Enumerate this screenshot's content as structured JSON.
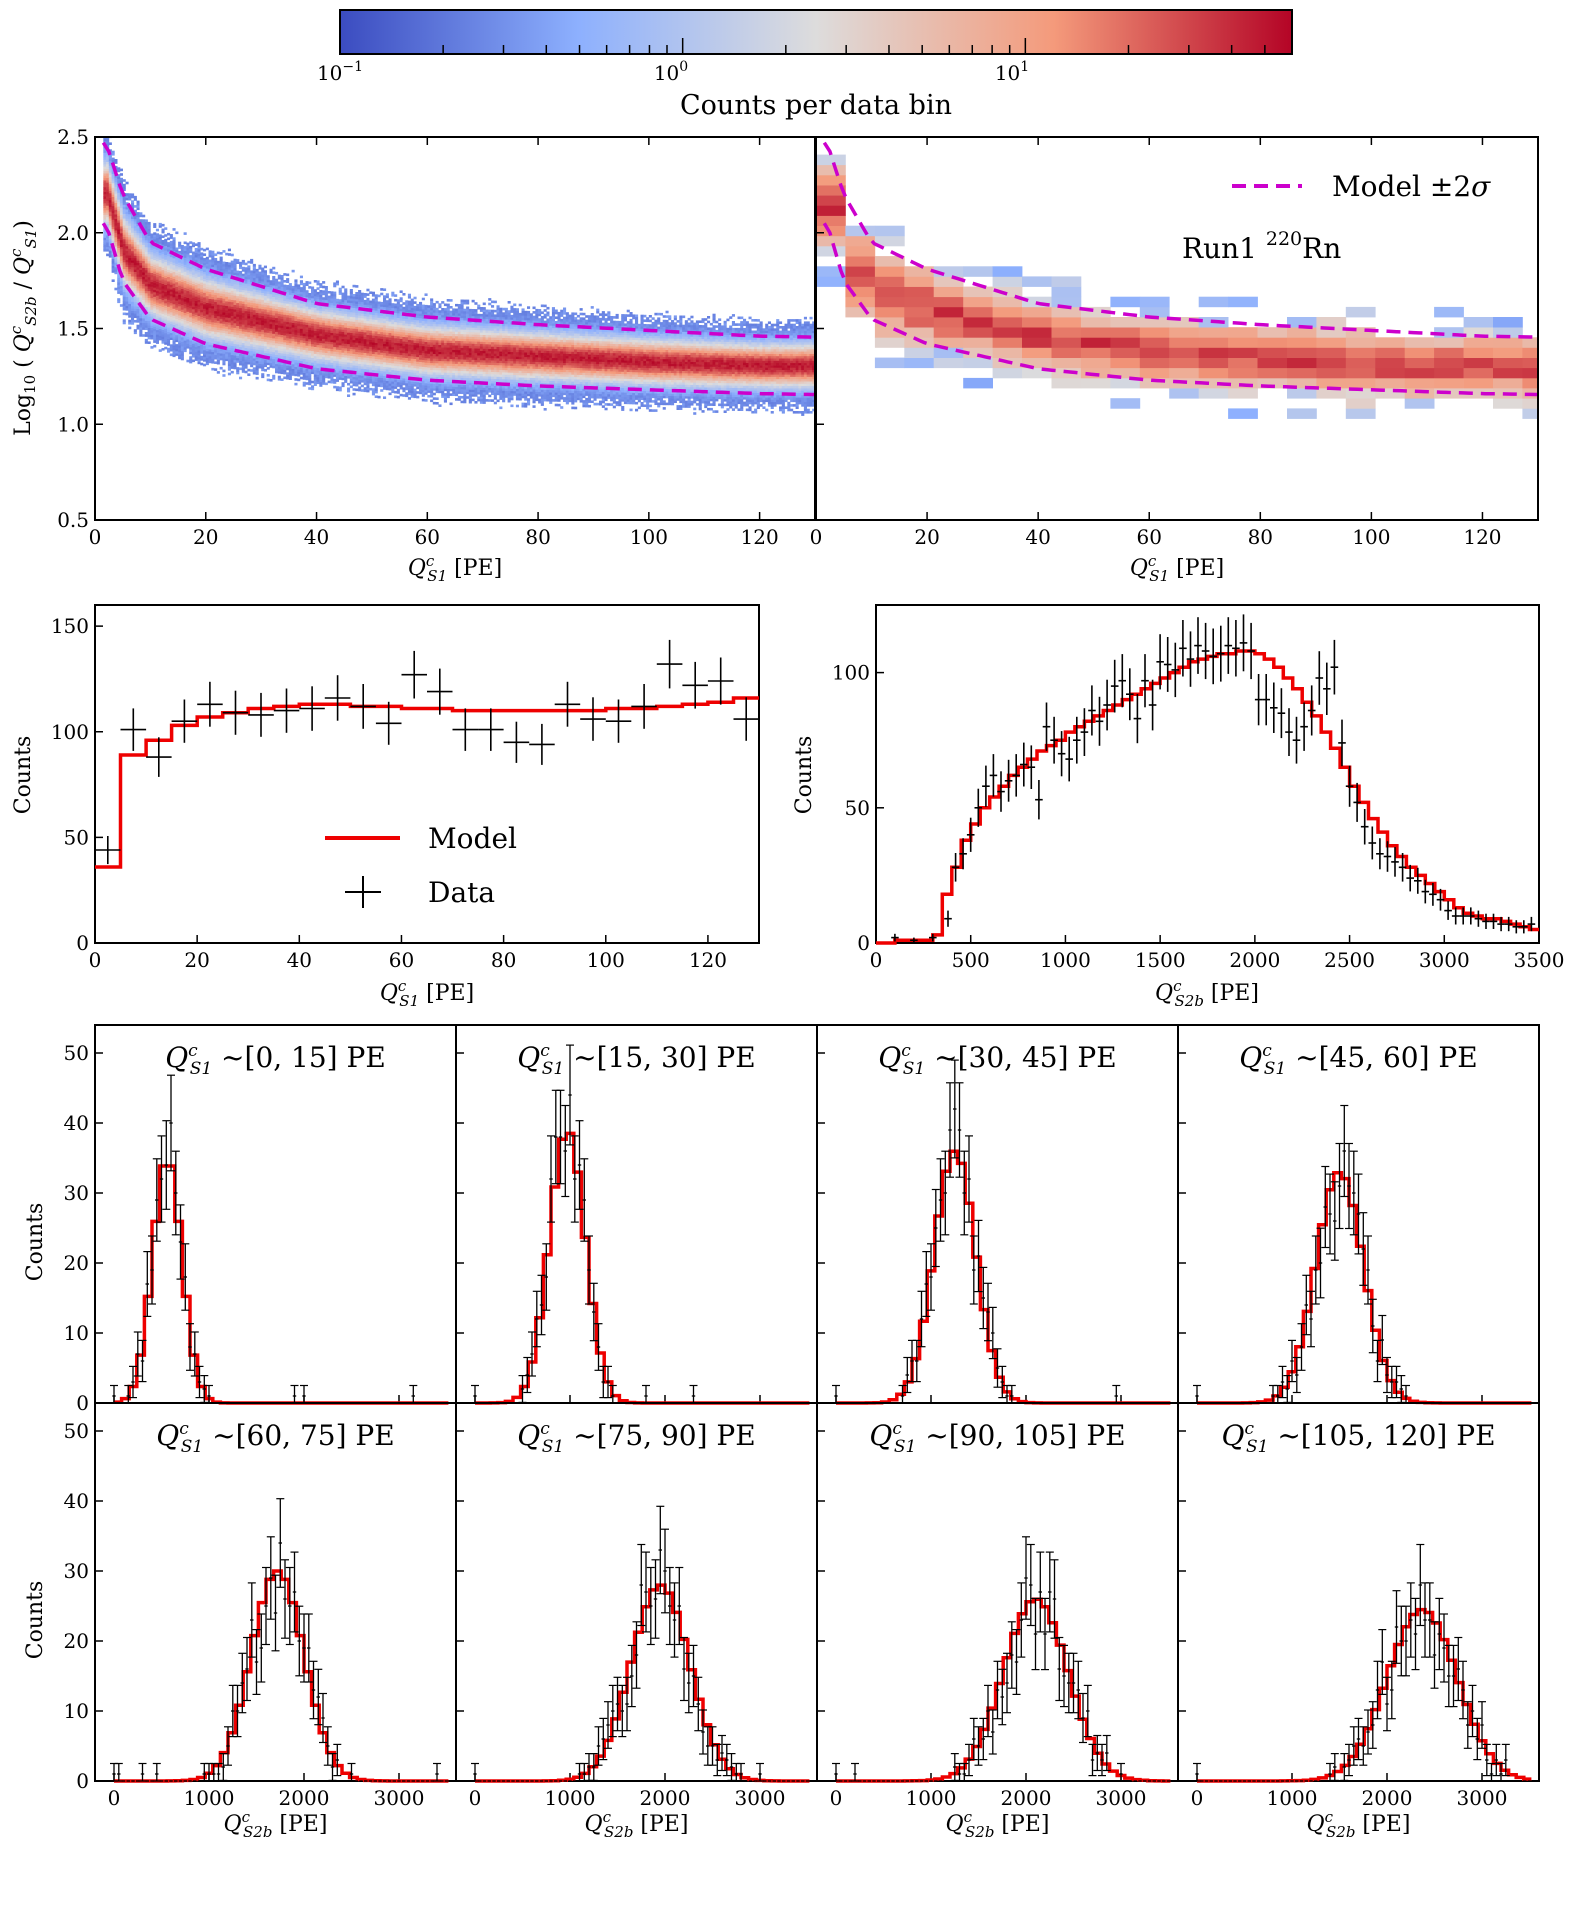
{
  "chart_data": [
    {
      "id": "colorbar",
      "type": "colorbar",
      "label": "Counts per data bin",
      "scale": "log",
      "range": [
        0.1,
        60
      ],
      "tick_labels": [
        "10^-1",
        "10^0",
        "10^1"
      ],
      "colors": [
        "#3b4cc0",
        "#8db0fe",
        "#dddcdc",
        "#f49a7b",
        "#b40426"
      ]
    },
    {
      "id": "hist2d-model",
      "type": "heatmap",
      "xlabel": "Q^c_S1 [PE]",
      "ylabel": "Log10 ( Q^c_S2b / Q^c_S1 )",
      "xlim": [
        0,
        130
      ],
      "ylim": [
        0.5,
        2.5
      ],
      "xticks": [
        "0",
        "20",
        "40",
        "60",
        "80",
        "100",
        "120"
      ],
      "yticks": [
        "0.5",
        "1.0",
        "1.5",
        "2.0",
        "2.5"
      ],
      "band_center": [
        [
          2,
          2.2
        ],
        [
          5,
          1.9
        ],
        [
          10,
          1.72
        ],
        [
          20,
          1.6
        ],
        [
          40,
          1.46
        ],
        [
          60,
          1.38
        ],
        [
          80,
          1.35
        ],
        [
          100,
          1.32
        ],
        [
          120,
          1.3
        ],
        [
          130,
          1.3
        ]
      ],
      "model_minus2sigma": [
        [
          2,
          2.05
        ],
        [
          5,
          1.75
        ],
        [
          10,
          1.55
        ],
        [
          20,
          1.42
        ],
        [
          40,
          1.29
        ],
        [
          60,
          1.23
        ],
        [
          80,
          1.2
        ],
        [
          100,
          1.18
        ],
        [
          120,
          1.16
        ],
        [
          130,
          1.155
        ]
      ],
      "model_plus2sigma": [
        [
          2,
          2.47
        ],
        [
          5,
          2.2
        ],
        [
          10,
          1.95
        ],
        [
          20,
          1.81
        ],
        [
          40,
          1.63
        ],
        [
          60,
          1.56
        ],
        [
          80,
          1.52
        ],
        [
          100,
          1.49
        ],
        [
          120,
          1.46
        ],
        [
          130,
          1.455
        ]
      ]
    },
    {
      "id": "hist2d-data",
      "type": "heatmap",
      "title": "Run1 220Rn",
      "legend": "Model ±2σ",
      "xlabel": "Q^c_S1 [PE]",
      "xlim": [
        0,
        130
      ],
      "ylim": [
        0.5,
        2.5
      ],
      "xticks": [
        "0",
        "20",
        "40",
        "60",
        "80",
        "100",
        "120"
      ]
    },
    {
      "id": "s1-spectrum",
      "type": "histogram",
      "xlabel": "Q^c_S1 [PE]",
      "ylabel": "Counts",
      "xlim": [
        0,
        130
      ],
      "ylim": [
        0,
        160
      ],
      "xticks": [
        "0",
        "20",
        "40",
        "60",
        "80",
        "100",
        "120"
      ],
      "yticks": [
        "0",
        "50",
        "100",
        "150"
      ],
      "legend": [
        "Model",
        "Data"
      ],
      "data_x": [
        2.5,
        7.5,
        12.5,
        17.5,
        22.5,
        27.5,
        32.5,
        37.5,
        42.5,
        47.5,
        52.5,
        57.5,
        62.5,
        67.5,
        72.5,
        77.5,
        82.5,
        87.5,
        92.5,
        97.5,
        102.5,
        107.5,
        112.5,
        117.5,
        122.5,
        127.5
      ],
      "data_y": [
        44,
        101,
        88,
        105,
        113,
        109,
        108,
        110,
        111,
        116,
        112,
        104,
        127,
        119,
        101,
        101,
        95,
        94,
        113,
        106,
        105,
        112,
        132,
        122,
        124,
        106
      ],
      "model_edges": [
        0,
        5,
        10,
        15,
        20,
        25,
        30,
        35,
        40,
        45,
        50,
        55,
        60,
        65,
        70,
        75,
        80,
        85,
        90,
        95,
        100,
        105,
        110,
        115,
        120,
        125,
        130
      ],
      "model_values": [
        36,
        89,
        96,
        103,
        107,
        109,
        111,
        112,
        113,
        113,
        112,
        112,
        111,
        111,
        110,
        110,
        110,
        110,
        110,
        110,
        111,
        111,
        112,
        113,
        114,
        116
      ]
    },
    {
      "id": "s2-spectrum",
      "type": "histogram",
      "xlabel": "Q^c_S2b [PE]",
      "ylabel": "Counts",
      "xlim": [
        0,
        3500
      ],
      "ylim": [
        0,
        125
      ],
      "xticks": [
        "0",
        "500",
        "1000",
        "1500",
        "2000",
        "2500",
        "3000",
        "3500"
      ],
      "yticks": [
        "0",
        "50",
        "100"
      ],
      "data_x": [
        100,
        200,
        300,
        380,
        420,
        460,
        500,
        540,
        580,
        620,
        660,
        700,
        740,
        780,
        820,
        860,
        900,
        940,
        980,
        1020,
        1060,
        1100,
        1140,
        1180,
        1220,
        1260,
        1300,
        1340,
        1380,
        1420,
        1460,
        1500,
        1540,
        1580,
        1620,
        1660,
        1700,
        1740,
        1780,
        1820,
        1860,
        1900,
        1940,
        1980,
        2020,
        2060,
        2100,
        2140,
        2180,
        2220,
        2260,
        2300,
        2340,
        2380,
        2420,
        2460,
        2500,
        2540,
        2580,
        2620,
        2660,
        2700,
        2740,
        2780,
        2820,
        2860,
        2900,
        2940,
        2980,
        3020,
        3060,
        3100,
        3140,
        3180,
        3220,
        3260,
        3300,
        3340,
        3380,
        3420,
        3460
      ],
      "data_y": [
        2,
        1,
        2,
        9,
        28,
        33,
        40,
        50,
        58,
        62,
        56,
        60,
        62,
        66,
        65,
        53,
        80,
        75,
        70,
        68,
        75,
        78,
        86,
        82,
        88,
        95,
        97,
        92,
        83,
        97,
        88,
        104,
        103,
        101,
        109,
        105,
        110,
        108,
        106,
        107,
        110,
        109,
        111,
        108,
        90,
        90,
        87,
        85,
        78,
        75,
        80,
        86,
        98,
        94,
        102,
        74,
        58,
        52,
        43,
        37,
        33,
        32,
        30,
        28,
        24,
        23,
        19,
        18,
        16,
        12,
        10,
        10,
        10,
        9,
        8,
        8,
        7,
        7,
        6,
        6,
        7
      ],
      "model_edges": [
        0,
        100,
        200,
        300,
        350,
        400,
        450,
        500,
        550,
        600,
        650,
        700,
        750,
        800,
        850,
        900,
        950,
        1000,
        1050,
        1100,
        1150,
        1200,
        1250,
        1300,
        1350,
        1400,
        1450,
        1500,
        1550,
        1600,
        1650,
        1700,
        1750,
        1800,
        1850,
        1900,
        1950,
        2000,
        2050,
        2100,
        2150,
        2200,
        2250,
        2300,
        2350,
        2400,
        2450,
        2500,
        2550,
        2600,
        2650,
        2700,
        2750,
        2800,
        2850,
        2900,
        2950,
        3000,
        3050,
        3100,
        3150,
        3200,
        3250,
        3300,
        3350,
        3400,
        3450,
        3500
      ],
      "model_values": [
        0,
        1,
        1,
        3,
        18,
        28,
        38,
        44,
        50,
        54,
        58,
        62,
        65,
        68,
        71,
        73,
        75,
        78,
        80,
        82,
        84,
        86,
        88,
        90,
        92,
        94,
        96,
        98,
        100,
        102,
        104,
        105,
        106,
        107,
        107,
        108,
        108,
        107,
        105,
        102,
        98,
        94,
        89,
        84,
        78,
        72,
        65,
        58,
        52,
        46,
        41,
        36,
        32,
        28,
        25,
        22,
        19,
        16,
        13,
        11,
        10,
        9,
        9,
        8,
        7,
        6,
        5
      ]
    },
    {
      "id": "slices",
      "type": "histogram-grid",
      "ylabel": "Counts",
      "xlabel": "Q^c_S2b [PE]",
      "xlim": [
        -200,
        3600
      ],
      "ylim": [
        0,
        54
      ],
      "xticks": [
        "0",
        "1000",
        "2000",
        "3000"
      ],
      "yticks": [
        "0",
        "10",
        "20",
        "30",
        "40",
        "50"
      ],
      "panels": [
        {
          "label": "~[0, 15] PE",
          "model_mean": 560,
          "model_sigma": 155,
          "model_peak": 35
        },
        {
          "label": "~[15, 30] PE",
          "model_mean": 970,
          "model_sigma": 190,
          "model_peak": 39
        },
        {
          "label": "~[30, 45] PE",
          "model_mean": 1250,
          "model_sigma": 220,
          "model_peak": 36
        },
        {
          "label": "~[45, 60] PE",
          "model_mean": 1500,
          "model_sigma": 250,
          "model_peak": 33
        },
        {
          "label": "~[60, 75] PE",
          "model_mean": 1720,
          "model_sigma": 280,
          "model_peak": 30
        },
        {
          "label": "~[75, 90] PE",
          "model_mean": 1950,
          "model_sigma": 310,
          "model_peak": 28
        },
        {
          "label": "~[90, 105] PE",
          "model_mean": 2100,
          "model_sigma": 340,
          "model_peak": 26
        },
        {
          "label": "~[105, 120] PE",
          "model_mean": 2370,
          "model_sigma": 370,
          "model_peak": 24.5
        }
      ]
    }
  ]
}
